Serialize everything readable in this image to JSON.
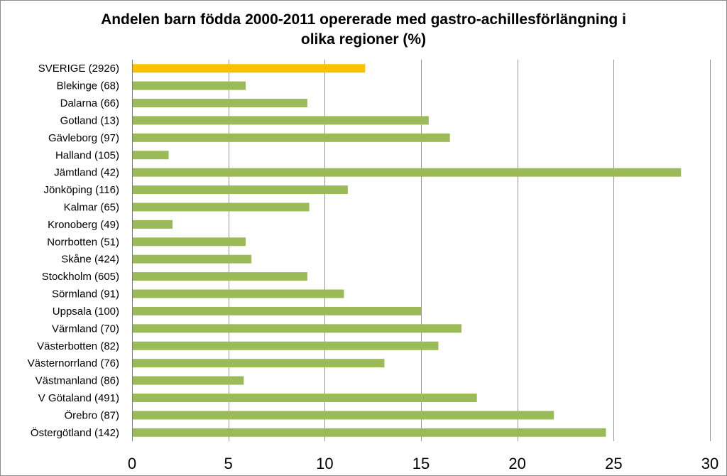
{
  "chart_data": {
    "type": "bar",
    "orientation": "horizontal",
    "title": "Andelen barn födda 2000-2011 opererade med gastro-achillesförlängning i\nolika regioner (%)",
    "xlabel": "",
    "ylabel": "",
    "xlim": [
      0,
      30
    ],
    "xticks": [
      "0",
      "5",
      "10",
      "15",
      "20",
      "25",
      "30"
    ],
    "grid": "vertical",
    "legend": "none",
    "colors": {
      "highlight": "#ffc000",
      "default": "#9bbb59",
      "grid": "#969696",
      "axis": "#7f7f7f"
    },
    "categories": [
      "SVERIGE (2926)",
      "Blekinge (68)",
      "Dalarna (66)",
      "Gotland (13)",
      "Gävleborg (97)",
      "Halland (105)",
      "Jämtland (42)",
      "Jönköping (116)",
      "Kalmar (65)",
      "Kronoberg (49)",
      "Norrbotten (51)",
      "Skåne (424)",
      "Stockholm (605)",
      "Sörmland (91)",
      "Uppsala (100)",
      "Värmland (70)",
      "Västerbotten (82)",
      "Västernorrland (76)",
      "Västmanland (86)",
      "V Götaland (491)",
      "Örebro (87)",
      "Östergötland (142)"
    ],
    "values": [
      12.1,
      5.9,
      9.1,
      15.4,
      16.5,
      1.9,
      28.5,
      11.2,
      9.2,
      2.1,
      5.9,
      6.2,
      9.1,
      11.0,
      15.0,
      17.1,
      15.9,
      13.1,
      5.8,
      17.9,
      21.9,
      24.6
    ],
    "highlight_index": 0
  }
}
